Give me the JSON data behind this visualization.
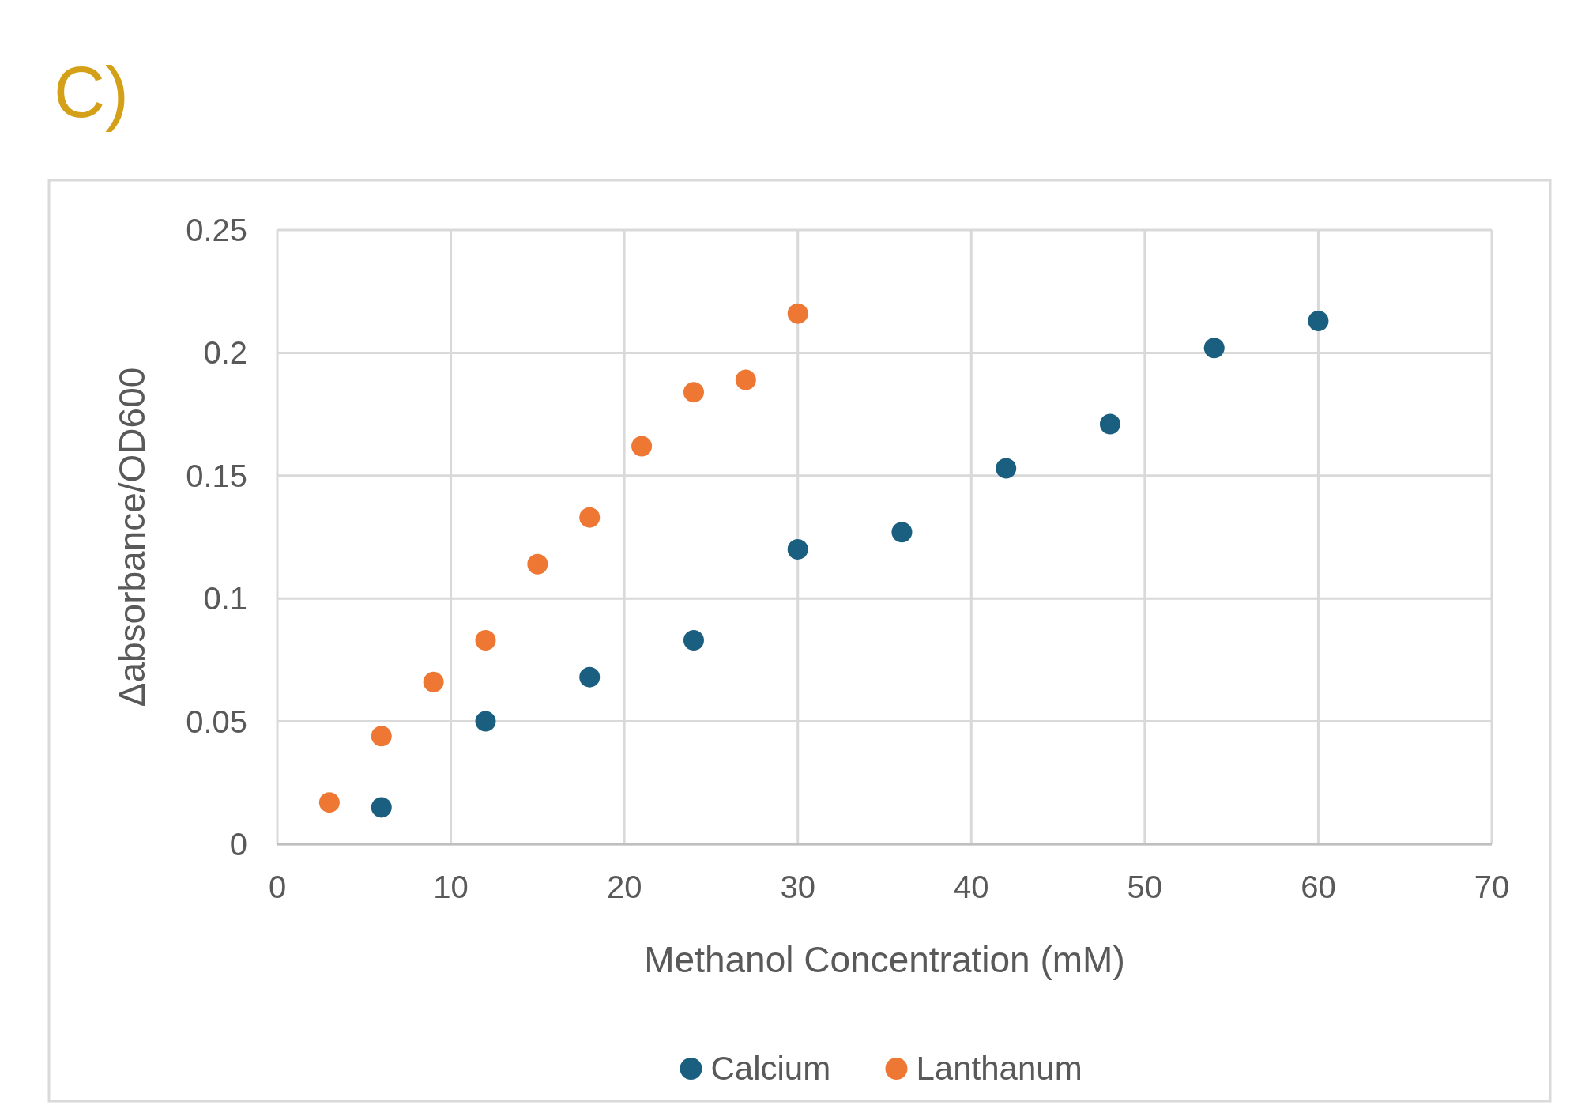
{
  "chart_data": {
    "type": "scatter",
    "title": "C)",
    "xlabel": "Methanol Concentration (mM)",
    "ylabel": "Δabsorbance/OD600",
    "series": [
      {
        "name": "Calcium",
        "color": "#1a5f80",
        "x": [
          6,
          12,
          18,
          24,
          30,
          36,
          42,
          48,
          54,
          60
        ],
        "values": [
          0.015,
          0.05,
          0.068,
          0.083,
          0.12,
          0.127,
          0.153,
          0.171,
          0.202,
          0.213
        ]
      },
      {
        "name": "Lanthanum",
        "color": "#ee7733",
        "x": [
          3,
          6,
          9,
          12,
          15,
          18,
          21,
          24,
          27,
          30
        ],
        "values": [
          0.017,
          0.044,
          0.066,
          0.083,
          0.114,
          0.133,
          0.162,
          0.184,
          0.189,
          0.216
        ]
      }
    ],
    "xlim": [
      0,
      70
    ],
    "xticks": [
      0,
      10,
      20,
      30,
      40,
      50,
      60,
      70
    ],
    "ylim": [
      0,
      0.25
    ],
    "yticks": [
      0,
      0.05,
      0.1,
      0.15,
      0.2,
      0.25
    ],
    "grid": true,
    "legend": "bottom",
    "marker": "circle"
  }
}
